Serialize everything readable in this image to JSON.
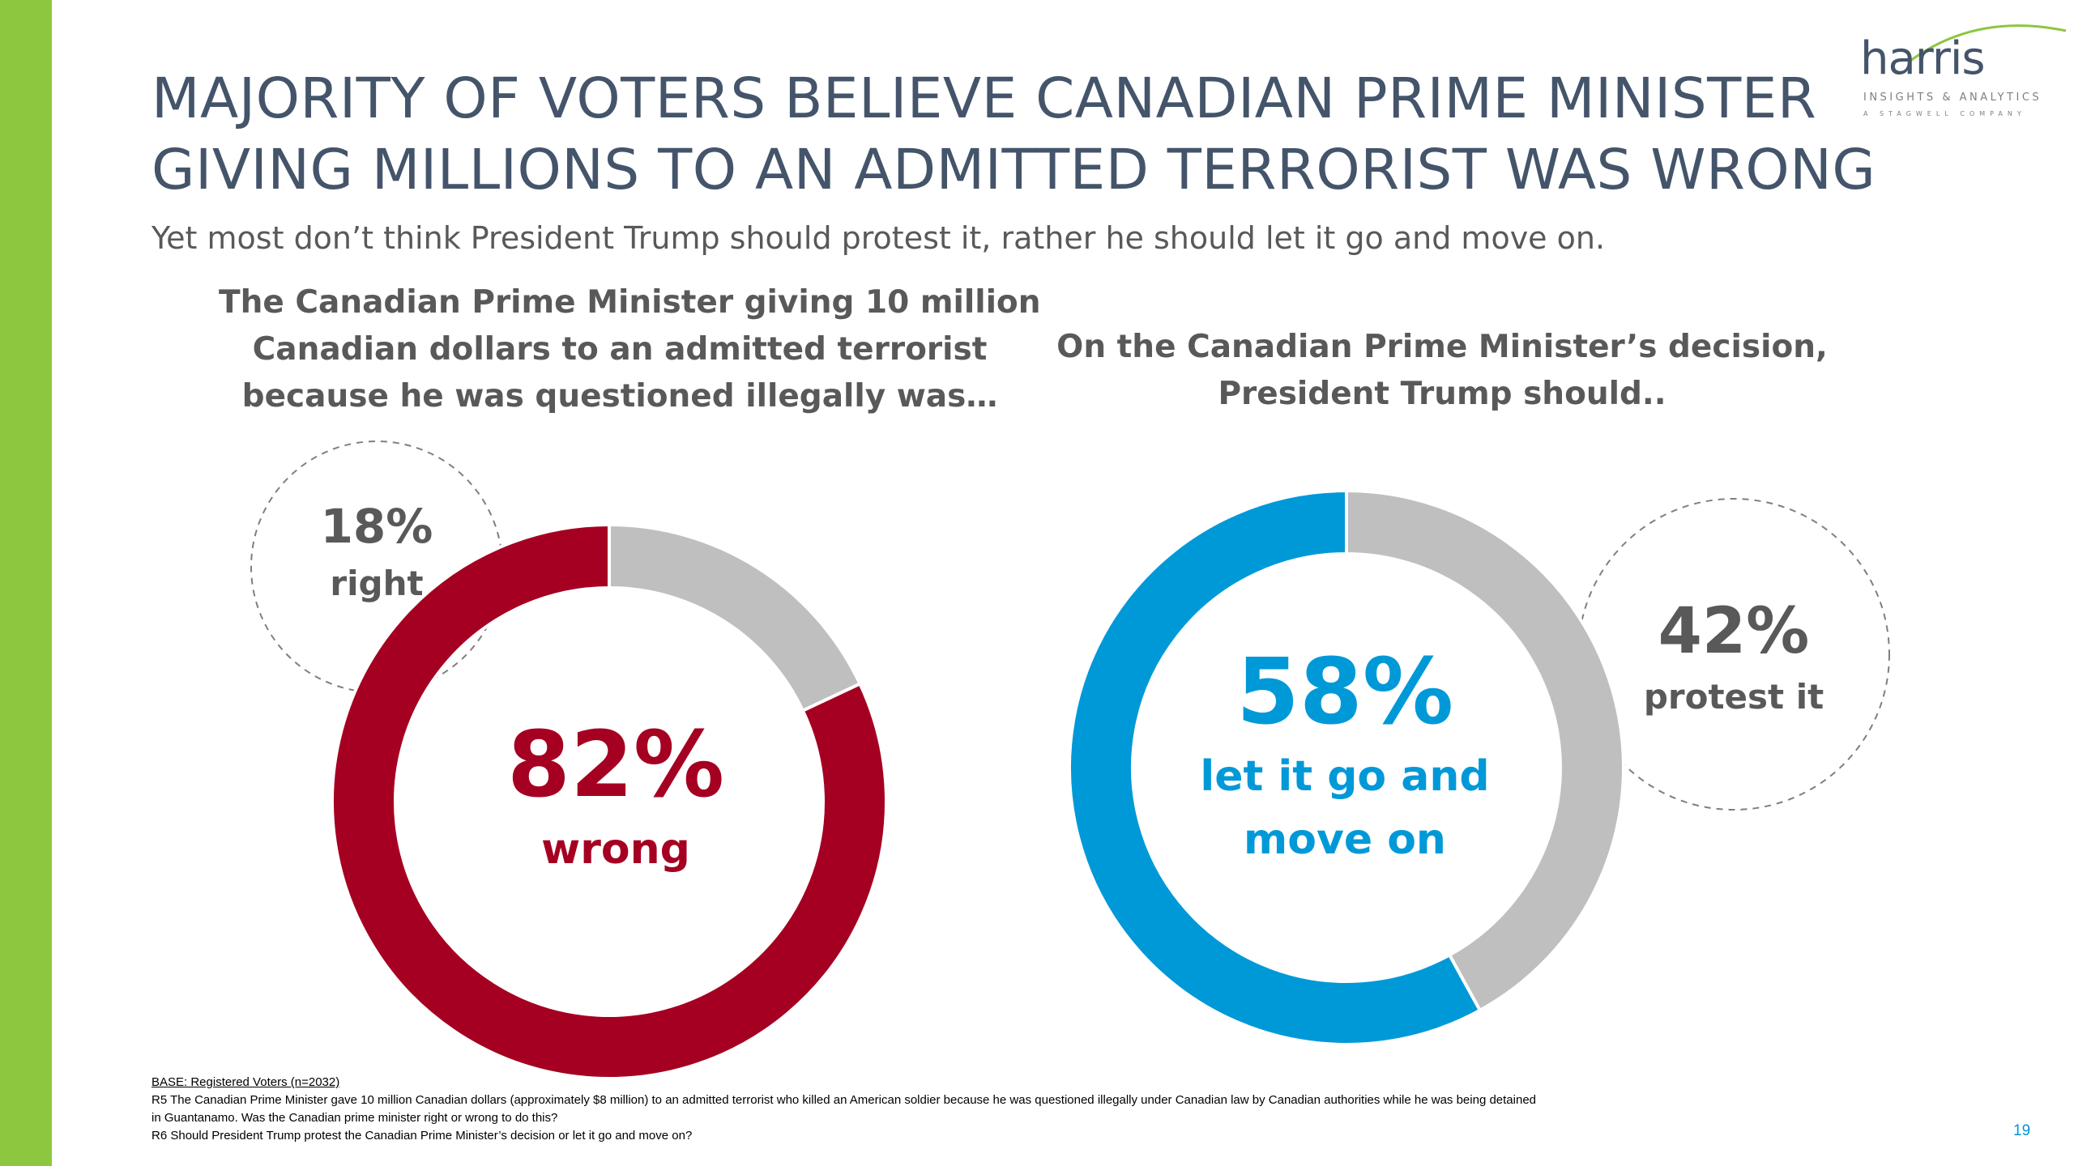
{
  "slide": {
    "title_line1": "MAJORITY OF VOTERS BELIEVE CANADIAN PRIME MINISTER",
    "title_line2": "GIVING MILLIONS TO AN ADMITTED TERRORIST WAS WRONG",
    "subtitle": "Yet most don’t think President Trump should protest it, rather he should let it go and move on.",
    "page_number": "19"
  },
  "logo": {
    "name": "harris",
    "tagline": "INSIGHTS & ANALYTICS",
    "subline": "A STAGWELL COMPANY"
  },
  "colors": {
    "accent_green": "#8dc63f",
    "title": "#44546a",
    "wrong": "#a50021",
    "let_go": "#0099d8",
    "neutral": "#bfbfbf",
    "text_gray": "#595959"
  },
  "chart_data": [
    {
      "type": "pie",
      "variant": "donut",
      "title_lines": [
        "The Canadian Prime Minister giving 10 million",
        "Canadian dollars to an admitted terrorist",
        "because he was questioned illegally was…"
      ],
      "slices": [
        {
          "label": "wrong",
          "value": 82,
          "display": "82%",
          "color": "#a50021"
        },
        {
          "label": "right",
          "value": 18,
          "display": "18%",
          "color": "#bfbfbf"
        }
      ],
      "units": "%"
    },
    {
      "type": "pie",
      "variant": "donut",
      "title_lines": [
        "On the Canadian Prime Minister’s decision,",
        "President Trump should.."
      ],
      "slices": [
        {
          "label_lines": [
            "let it go and",
            "move on"
          ],
          "value": 58,
          "display": "58%",
          "color": "#0099d8"
        },
        {
          "label": "protest it",
          "value": 42,
          "display": "42%",
          "color": "#bfbfbf"
        }
      ],
      "units": "%"
    }
  ],
  "footnotes": {
    "base": "BASE: Registered Voters (n=2032)",
    "r5_line1": "R5 The Canadian Prime Minister gave 10 million Canadian dollars (approximately $8 million) to an admitted terrorist who killed an American soldier because he was questioned illegally under Canadian law by Canadian authorities while he was being detained",
    "r5_line2": "in Guantanamo. Was the Canadian prime minister right or wrong to do this?",
    "r6": "R6 Should President Trump protest the Canadian Prime Minister’s decision or let it go and move on?"
  }
}
